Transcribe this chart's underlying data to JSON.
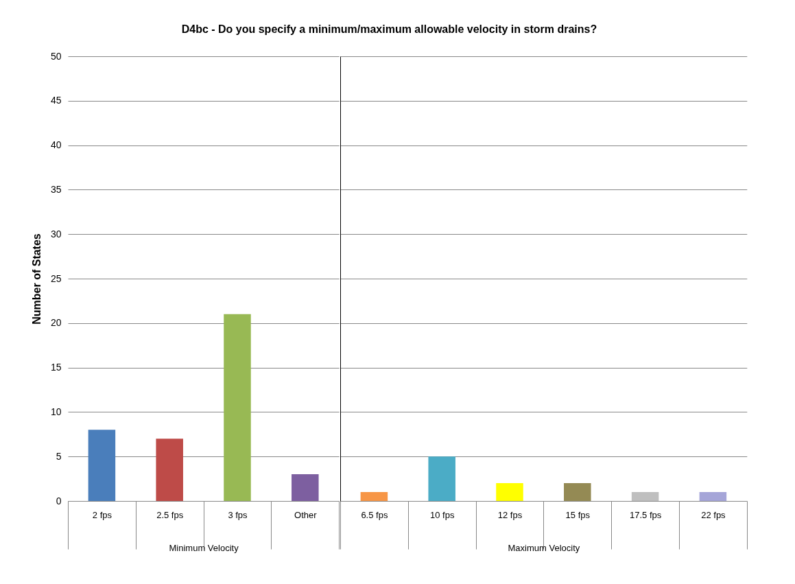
{
  "chart_data": [
    {
      "type": "bar",
      "title": "D4bc - Do you specify a minimum/maximum allowable velocity in storm drains?",
      "xlabel": "Minimum Velocity",
      "ylabel": "Number of States",
      "categories": [
        "2 fps",
        "2.5 fps",
        "3 fps",
        "Other"
      ],
      "values": [
        8,
        7,
        21,
        3
      ],
      "colors": [
        "#4a7ebb",
        "#be4b48",
        "#98b954",
        "#7d5fa0"
      ],
      "ylim": [
        0,
        50
      ],
      "yticks": [
        0,
        5,
        10,
        15,
        20,
        25,
        30,
        35,
        40,
        45,
        50
      ],
      "grid": "y"
    },
    {
      "type": "bar",
      "xlabel": "Maximum Velocity",
      "categories": [
        "6.5 fps",
        "10 fps",
        "12 fps",
        "15 fps",
        "17.5 fps",
        "22 fps"
      ],
      "values": [
        1,
        5,
        2,
        2,
        1,
        1
      ],
      "colors": [
        "#f79646",
        "#4bacc6",
        "#ffff00",
        "#948a54",
        "#bfbfbf",
        "#a5a5d8"
      ],
      "ylim": [
        0,
        50
      ],
      "yticks": [
        0,
        5,
        10,
        15,
        20,
        25,
        30,
        35,
        40,
        45,
        50
      ],
      "grid": "y",
      "tick_labels": "x"
    }
  ]
}
